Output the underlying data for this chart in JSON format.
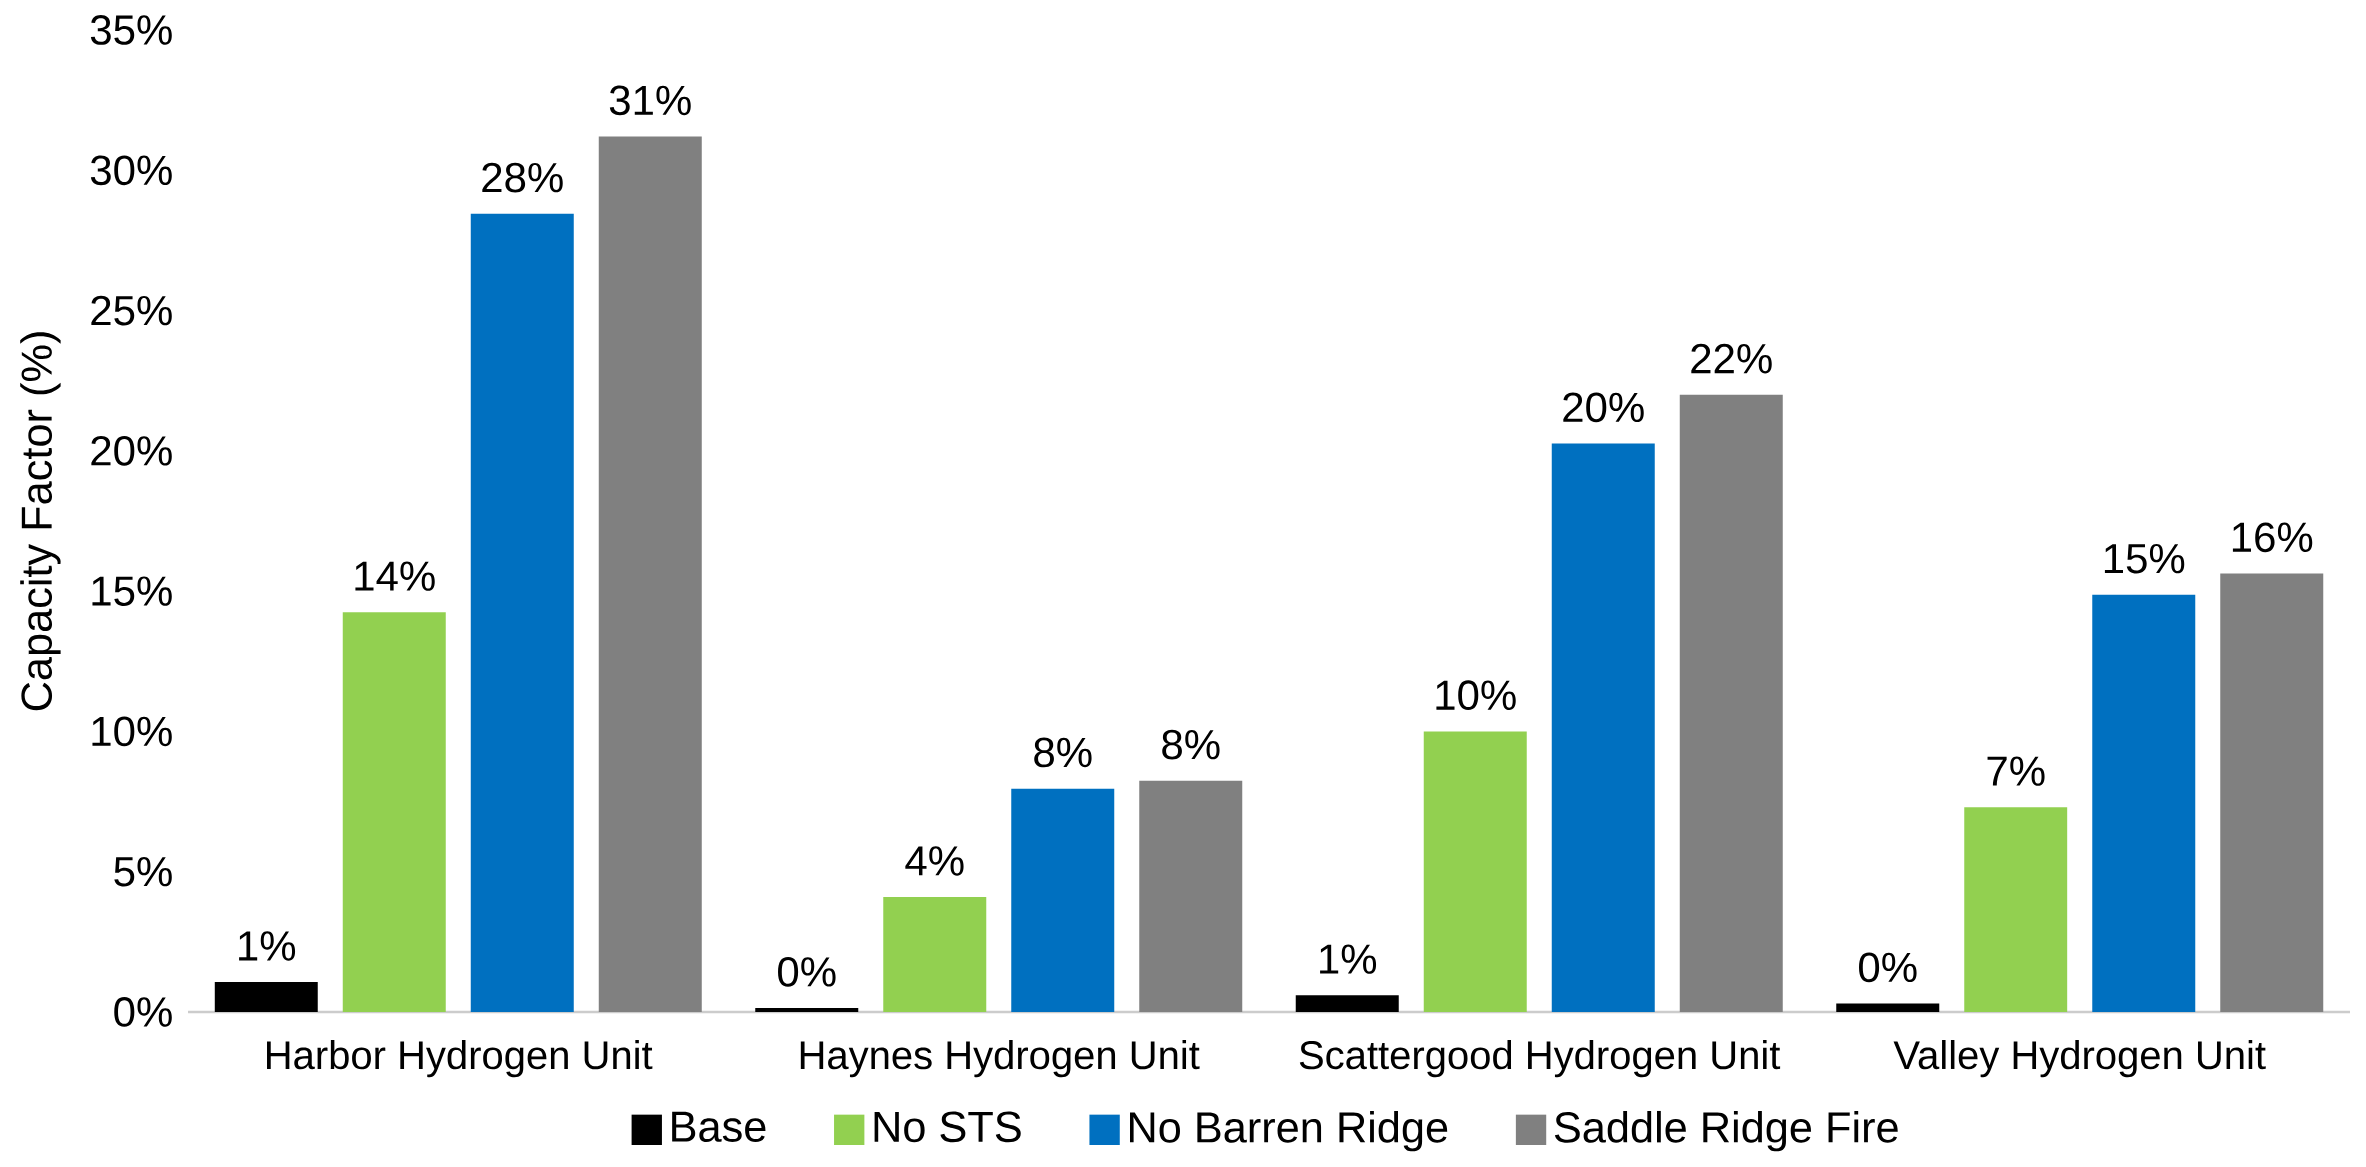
{
  "chart_data": {
    "type": "bar",
    "ylabel": "Capacity Factor (%)",
    "categories": [
      "Harbor Hydrogen Unit",
      "Haynes Hydrogen Unit",
      "Scattergood Hydrogen Unit",
      "Valley Hydrogen Unit"
    ],
    "series": [
      {
        "name": "Base",
        "color": "#000000",
        "values": [
          1.07,
          0.14,
          0.6,
          0.3
        ],
        "value_labels": [
          "1%",
          "0%",
          "1%",
          "0%"
        ]
      },
      {
        "name": "No STS",
        "color": "#92d050",
        "values": [
          14.25,
          4.1,
          10.0,
          7.3
        ],
        "value_labels": [
          "14%",
          "4%",
          "10%",
          "7%"
        ]
      },
      {
        "name": "No Barren Ridge",
        "color": "#0070c0",
        "values": [
          28.45,
          7.96,
          20.26,
          14.87
        ],
        "value_labels": [
          "28%",
          "8%",
          "20%",
          "15%"
        ]
      },
      {
        "name": "Saddle Ridge Fire",
        "color": "#808080",
        "values": [
          31.2,
          8.24,
          22.0,
          15.63
        ],
        "value_labels": [
          "31%",
          "8%",
          "22%",
          "16%"
        ]
      }
    ],
    "ylim": [
      0,
      35
    ],
    "yticks": [
      {
        "value": 0,
        "label": "0%"
      },
      {
        "value": 5,
        "label": "5%"
      },
      {
        "value": 10,
        "label": "10%"
      },
      {
        "value": 15,
        "label": "15%"
      },
      {
        "value": 20,
        "label": "20%"
      },
      {
        "value": 25,
        "label": "25%"
      },
      {
        "value": 30,
        "label": "30%"
      },
      {
        "value": 35,
        "label": "35%"
      }
    ],
    "legend": "bottom",
    "grid": false
  }
}
